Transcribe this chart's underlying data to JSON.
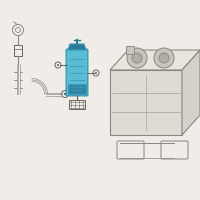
{
  "background_color": "#f0ede8",
  "line_color": "#888880",
  "dark_line": "#666660",
  "highlight_fill": "#5bbdd4",
  "highlight_edge": "#3a9ab8",
  "highlight_dark": "#2a7a98",
  "figsize": [
    2.0,
    2.0
  ],
  "dpi": 100
}
